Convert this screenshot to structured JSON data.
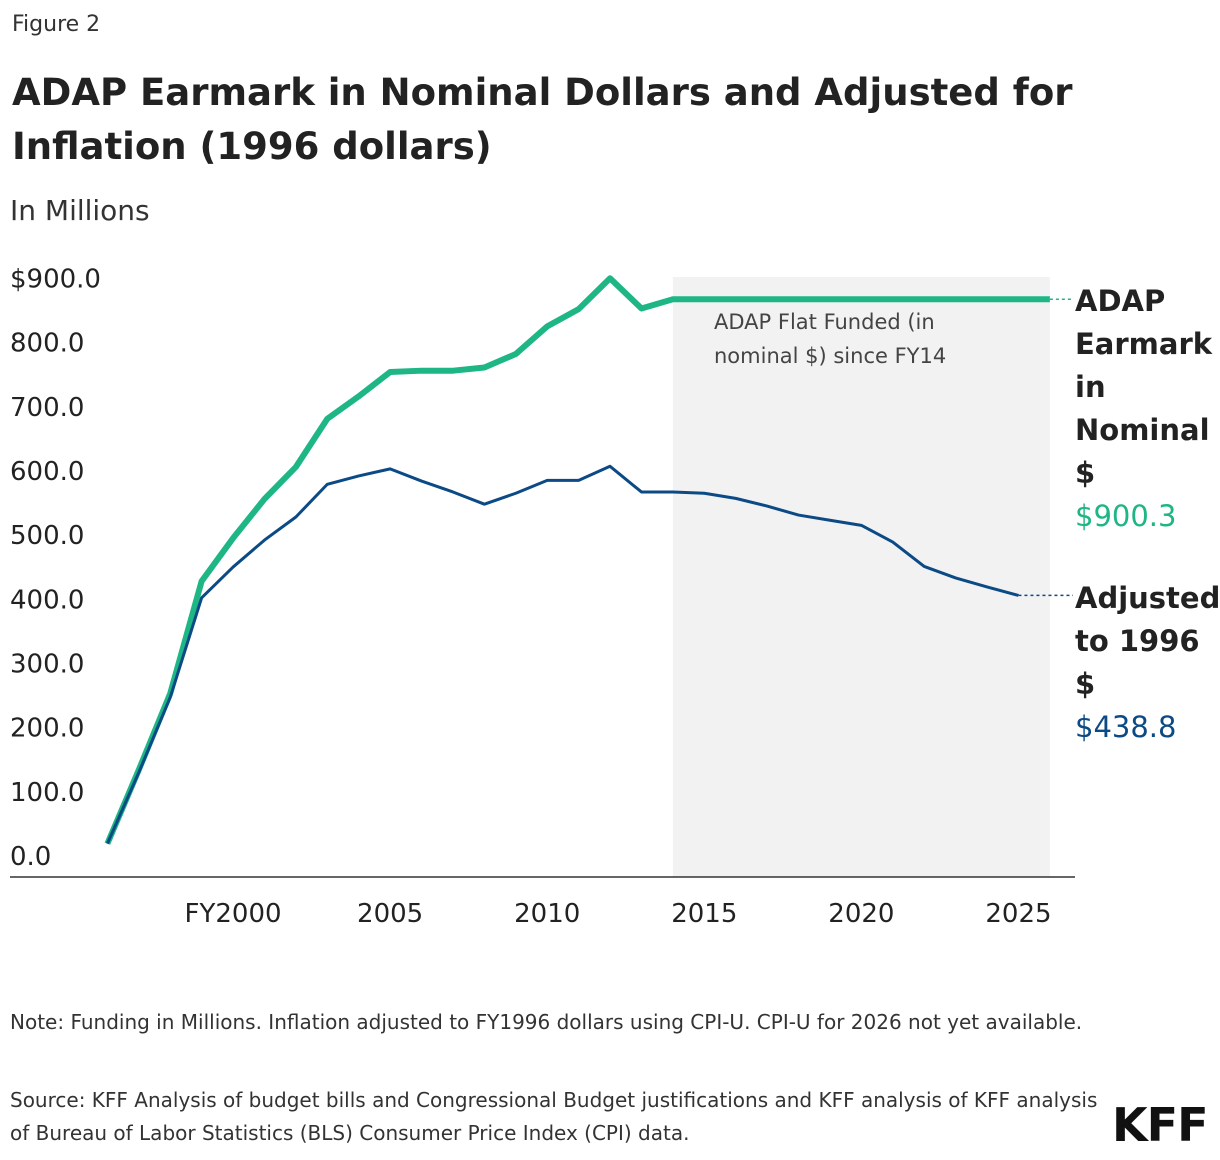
{
  "figure_label": "Figure 2",
  "chart_data": {
    "type": "line",
    "title": "ADAP Earmark in Nominal Dollars and Adjusted for Inflation (1996 dollars)",
    "y_axis_label": "In Millions",
    "x": [
      1996,
      1997,
      1998,
      1999,
      2000,
      2001,
      2002,
      2003,
      2004,
      2005,
      2006,
      2007,
      2008,
      2009,
      2010,
      2011,
      2012,
      2013,
      2014,
      2015,
      2016,
      2017,
      2018,
      2019,
      2020,
      2021,
      2022,
      2023,
      2024,
      2025,
      2026
    ],
    "series": [
      {
        "name": "ADAP Earmark in Nominal $",
        "color": "#1db684",
        "width": 6,
        "end_label": "$900.3",
        "values": [
          52,
          167,
          286,
          461,
          528,
          589,
          639,
          714,
          749,
          787,
          789,
          789,
          794,
          815,
          858,
          885,
          933,
          886,
          900.3,
          900.3,
          900.3,
          900.3,
          900.3,
          900.3,
          900.3,
          900.3,
          900.3,
          900.3,
          900.3,
          900.3,
          900.3
        ]
      },
      {
        "name": "Adjusted to 1996 $",
        "color": "#0c4a86",
        "width": 3,
        "end_label": "$438.8",
        "values": [
          52,
          163,
          280,
          435,
          483,
          525,
          561,
          612,
          625,
          636,
          617,
          600,
          581,
          598,
          618,
          618,
          640,
          600,
          600,
          598,
          590,
          578,
          564,
          556,
          548,
          522,
          484,
          466,
          452,
          438.8,
          null
        ]
      }
    ],
    "highlight": {
      "range": [
        2014,
        2026
      ],
      "label": "ADAP Flat Funded (in nominal $) since FY14"
    },
    "xlim": [
      1992.9,
      2026.8
    ],
    "ylim": [
      0,
      935
    ],
    "xticks": [
      {
        "value": 2000,
        "label": "FY2000"
      },
      2005,
      2010,
      2015,
      2020,
      2025
    ],
    "yticks": [
      {
        "value": 0,
        "label": "0.0"
      },
      {
        "value": 100,
        "label": "100.0"
      },
      {
        "value": 200,
        "label": "200.0"
      },
      {
        "value": 300,
        "label": "300.0"
      },
      {
        "value": 400,
        "label": "400.0"
      },
      {
        "value": 500,
        "label": "500.0"
      },
      {
        "value": 600,
        "label": "600.0"
      },
      {
        "value": 700,
        "label": "700.0"
      },
      {
        "value": 800,
        "label": "800.0"
      },
      {
        "value": 900,
        "label": "$900.0"
      }
    ],
    "grid": false
  },
  "note": "Note: Funding in Millions. Inflation adjusted to FY1996 dollars using CPI-U. CPI-U for 2026 not yet available.",
  "source": "Source: KFF Analysis of budget bills and Congressional Budget justifications and KFF analysis of KFF analysis of Bureau of Labor Statistics (BLS) Consumer Price Index (CPI) data.",
  "logo": "KFF"
}
